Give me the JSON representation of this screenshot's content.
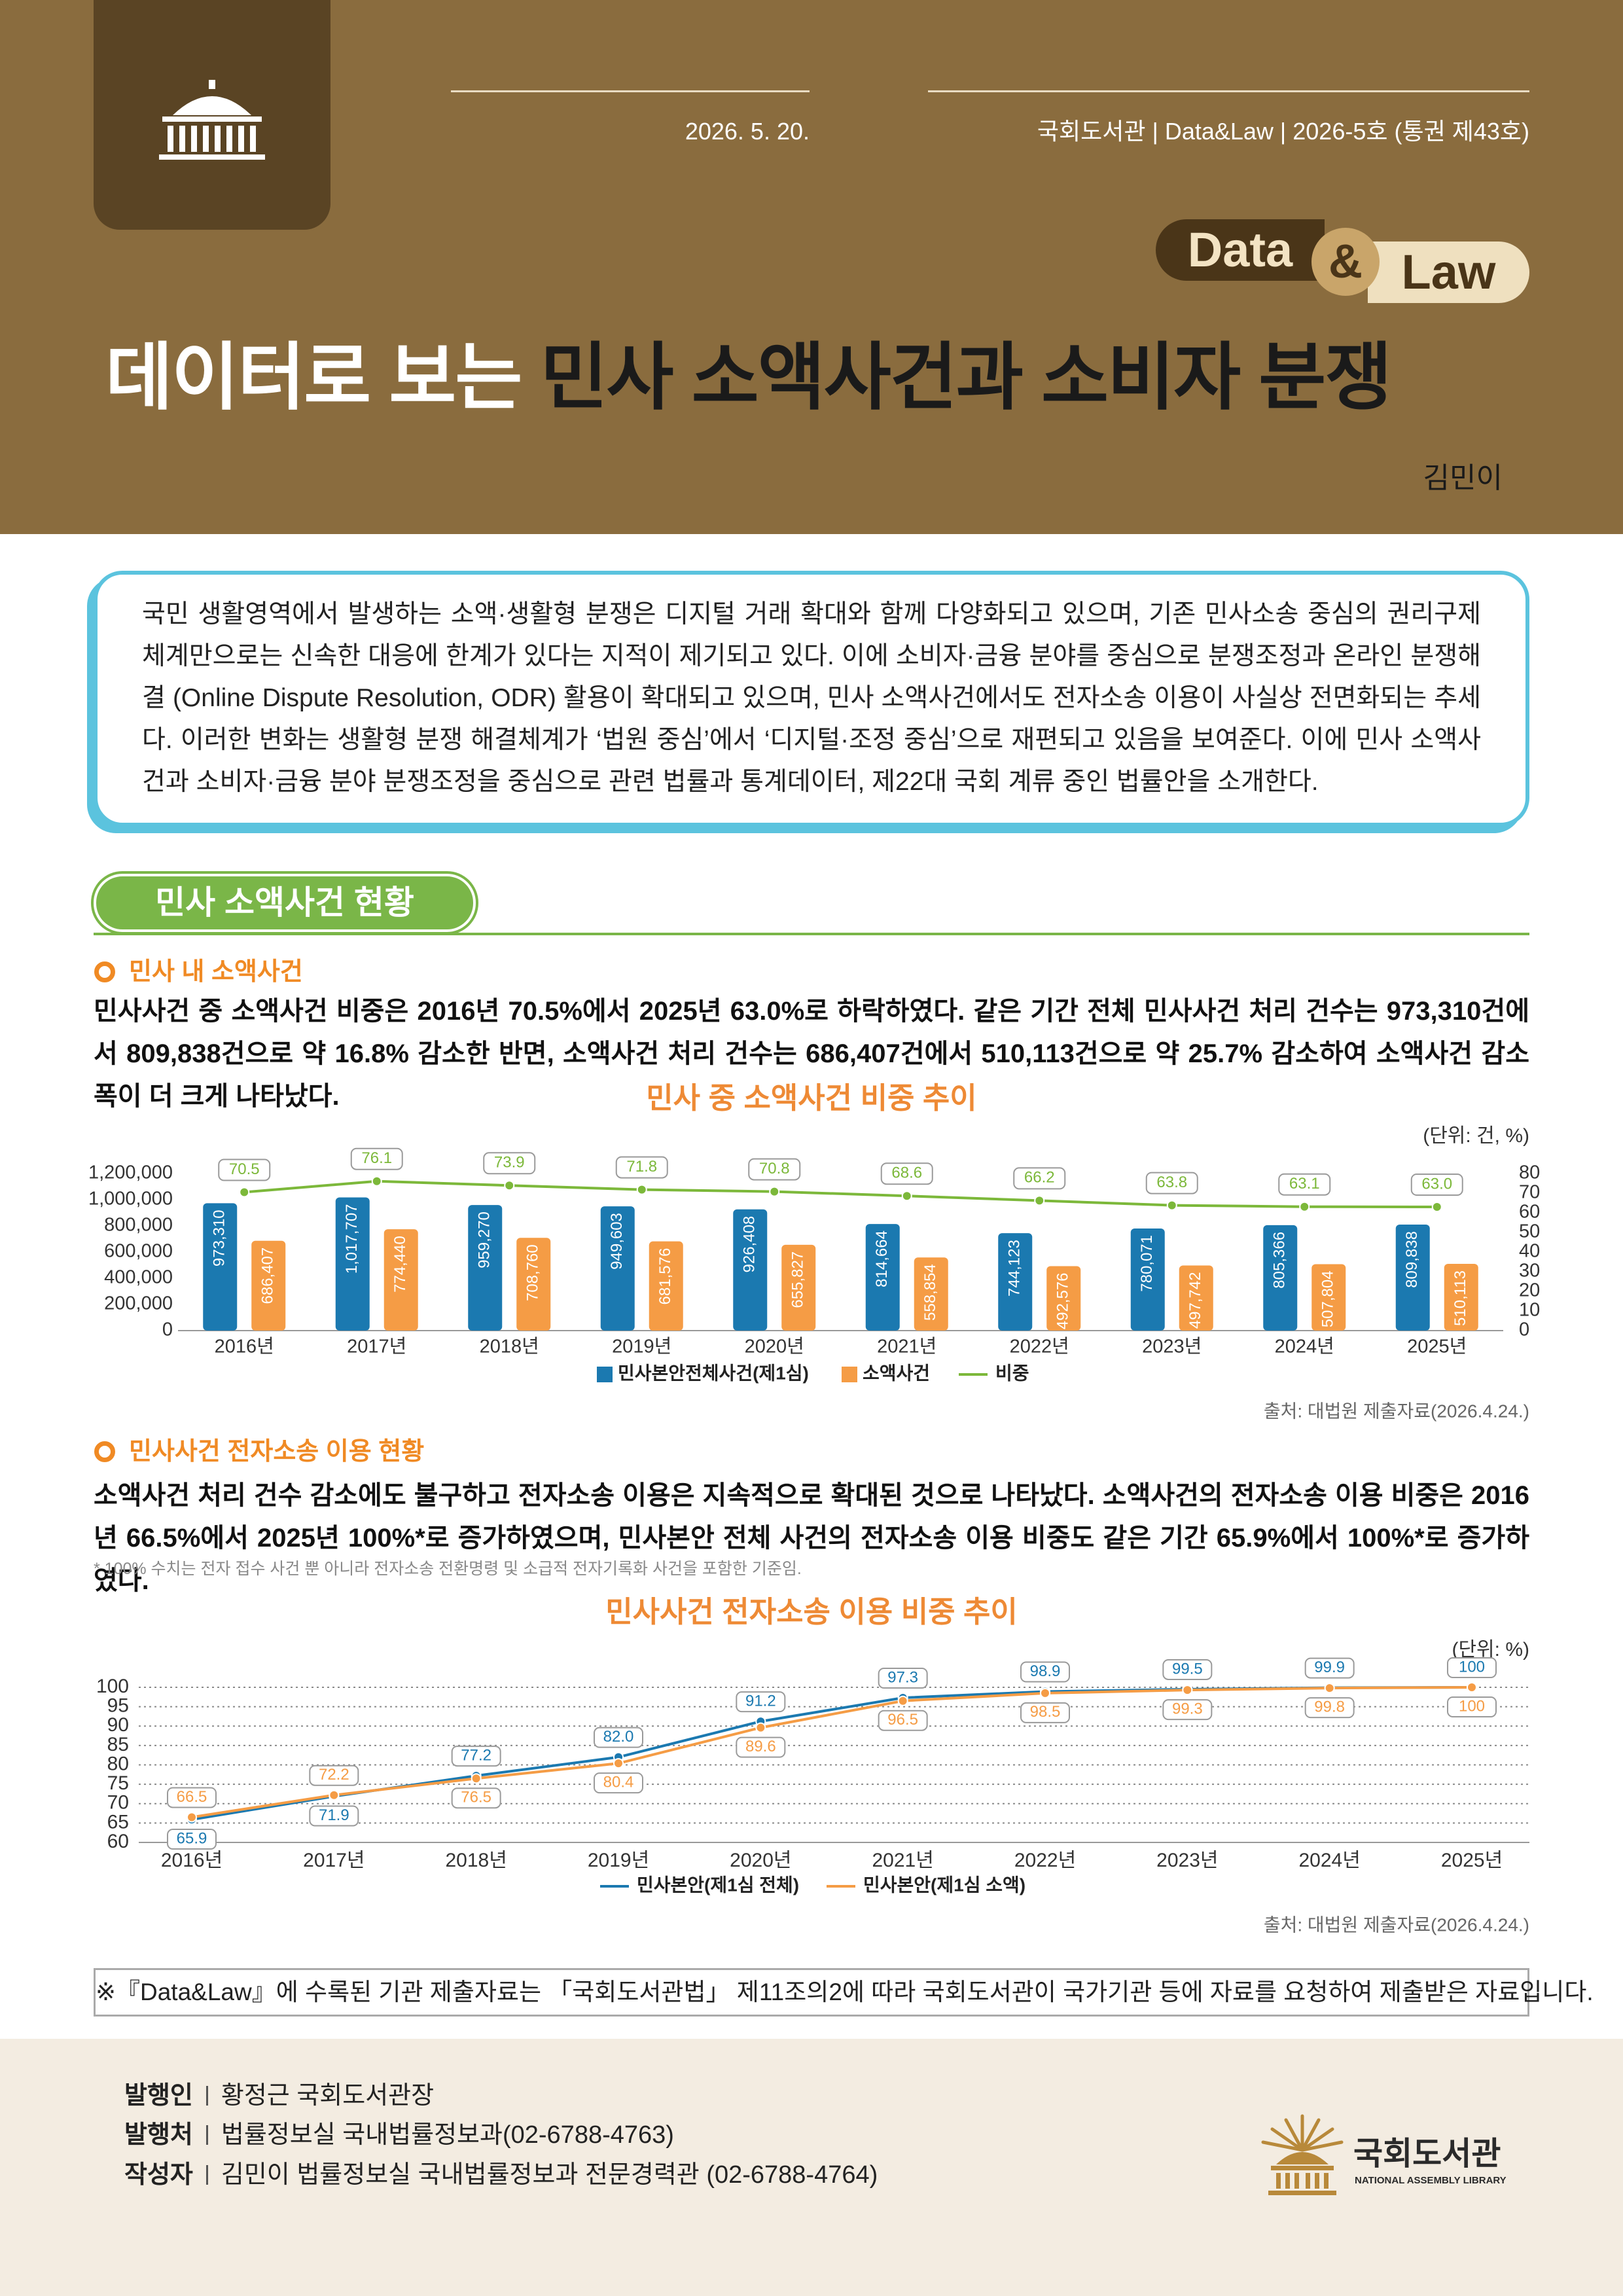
{
  "header": {
    "date": "2026. 5. 20.",
    "publication": "국회도서관 | Data&Law | 2026-5호 (통권 제43호)",
    "badge": {
      "data": "Data",
      "amp": "&",
      "law": "Law"
    },
    "title_lead": "데이터로 보는",
    "title_main": "민사 소액사건과 소비자 분쟁",
    "author": "김민이"
  },
  "intro": "국민 생활영역에서 발생하는 소액·생활형 분쟁은 디지털 거래 확대와 함께 다양화되고 있으며, 기존 민사소송 중심의 권리구제 체계만으로는 신속한 대응에 한계가 있다는 지적이 제기되고 있다. 이에 소비자·금융 분야를 중심으로 분쟁조정과 온라인 분쟁해결 (Online Dispute Resolution, ODR) 활용이 확대되고 있으며, 민사 소액사건에서도 전자소송 이용이 사실상 전면화되는 추세다. 이러한 변화는 생활형 분쟁 해결체계가 ‘법원 중심’에서 ‘디지털·조정 중심’으로 재편되고 있음을 보여준다. 이에 민사 소액사건과 소비자·금융 분야 분쟁조정을 중심으로 관련 법률과 통계데이터, 제22대 국회 계류 중인 법률안을 소개한다.",
  "section": {
    "title": "민사 소액사건 현황",
    "subsections": [
      {
        "heading": "민사 내 소액사건",
        "body": "민사사건 중 소액사건 비중은 2016년 70.5%에서 2025년 63.0%로 하락하였다. 같은 기간 전체 민사사건 처리 건수는 973,310건에서 809,838건으로 약 16.8% 감소한 반면, 소액사건 처리 건수는 686,407건에서 510,113건으로 약 25.7% 감소하여 소액사건 감소폭이 더 크게 나타났다."
      },
      {
        "heading": "민사사건 전자소송 이용 현황",
        "body": "소액사건 처리 건수 감소에도 불구하고 전자소송 이용은 지속적으로 확대된 것으로 나타났다. 소액사건의 전자소송 이용 비중은 2016년 66.5%에서 2025년 100%*로 증가하였으며, 민사본안 전체 사건의 전자소송 이용 비중도 같은 기간 65.9%에서 100%*로 증가하였다.",
        "note": "* 100% 수치는 전자 접수 사건 뿐 아니라 전자소송 전환명령 및 소급적 전자기록화 사건을 포함한 기준임."
      }
    ]
  },
  "chart_data": [
    {
      "type": "bar",
      "title": "민사 중 소액사건 비중 추이",
      "unit_note": "(단위: 건, %)",
      "source": "출처: 대법원 제출자료(2026.4.24.)",
      "categories": [
        "2016년",
        "2017년",
        "2018년",
        "2019년",
        "2020년",
        "2021년",
        "2022년",
        "2023년",
        "2024년",
        "2025년"
      ],
      "series": [
        {
          "name": "민사본안전체사건(제1심)",
          "type": "bar",
          "color": "#1b79b0",
          "values": [
            973310,
            1017707,
            959270,
            949603,
            926408,
            814664,
            744123,
            780071,
            805366,
            809838
          ],
          "value_labels": [
            "973,310",
            "1,017,707",
            "959,270",
            "949,603",
            "926,408",
            "814,664",
            "744,123",
            "780,071",
            "805,366",
            "809,838"
          ]
        },
        {
          "name": "소액사건",
          "type": "bar",
          "color": "#f59c45",
          "values": [
            686407,
            774440,
            708760,
            681576,
            655827,
            558854,
            492576,
            497742,
            507804,
            510113
          ],
          "value_labels": [
            "686,407",
            "774,440",
            "708,760",
            "681,576",
            "655,827",
            "558,854",
            "492,576",
            "497,742",
            "507,804",
            "510,113"
          ]
        },
        {
          "name": "비중",
          "type": "line",
          "axis": "y2",
          "color": "#7cb83a",
          "values": [
            70.5,
            76.1,
            73.9,
            71.8,
            70.8,
            68.6,
            66.2,
            63.8,
            63.1,
            63
          ],
          "value_labels": [
            "70.5",
            "76.1",
            "73.9",
            "71.8",
            "70.8",
            "68.6",
            "66.2",
            "63.8",
            "63.1",
            "63.0"
          ]
        }
      ],
      "ylim": [
        0,
        1200000
      ],
      "yticks": [
        0,
        {
          "value": 200000,
          "label": "200,000"
        },
        {
          "value": 400000,
          "label": "400,000"
        },
        {
          "value": 600000,
          "label": "600,000"
        },
        {
          "value": 800000,
          "label": "800,000"
        },
        {
          "value": 1000000,
          "label": "1,000,000"
        },
        {
          "value": 1200000,
          "label": "1,200,000"
        }
      ],
      "y2lim": [
        0,
        80
      ],
      "y2ticks": [
        0,
        10,
        20,
        30,
        40,
        50,
        60,
        70,
        80
      ],
      "grid": false
    },
    {
      "type": "line",
      "title": "민사사건 전자소송 이용 비중 추이",
      "unit_note": "(단위: %)",
      "source": "출처: 대법원 제출자료(2026.4.24.)",
      "categories": [
        "2016년",
        "2017년",
        "2018년",
        "2019년",
        "2020년",
        "2021년",
        "2022년",
        "2023년",
        "2024년",
        "2025년"
      ],
      "series": [
        {
          "name": "민사본안(제1심 전체)",
          "type": "line",
          "color": "#1b79b0",
          "values": [
            65.9,
            71.9,
            77.2,
            82,
            91.2,
            97.3,
            98.9,
            99.5,
            99.9,
            100
          ],
          "value_labels": [
            "65.9",
            "71.9",
            "77.2",
            "82.0",
            "91.2",
            "97.3",
            "98.9",
            "99.5",
            "99.9",
            "100"
          ]
        },
        {
          "name": "민사본안(제1심 소액)",
          "type": "line",
          "color": "#f59c45",
          "values": [
            66.5,
            72.2,
            76.5,
            80.4,
            89.6,
            96.5,
            98.5,
            99.3,
            99.8,
            100
          ]
        }
      ],
      "ylim": [
        60,
        100
      ],
      "yticks": [
        60,
        65,
        70,
        75,
        80,
        85,
        90,
        95,
        100
      ],
      "grid": true
    }
  ],
  "notice": "※『Data&Law』에 수록된 기관 제출자료는 「국회도서관법」 제11조의2에 따라 국회도서관이 국가기관 등에 자료를 요청하여 제출받은 자료입니다.",
  "footer": {
    "credits": [
      {
        "label": "발행인",
        "text": "황정근 국회도서관장"
      },
      {
        "label": "발행처",
        "text": "법률정보실 국내법률정보과(02-6788-4763)"
      },
      {
        "label": "작성자",
        "text": "김민이 법률정보실 국내법률정보과 전문경력관 (02-6788-4764)"
      }
    ],
    "logo": {
      "name": "국회도서관",
      "name_en": "NATIONAL ASSEMBLY LIBRARY"
    }
  }
}
